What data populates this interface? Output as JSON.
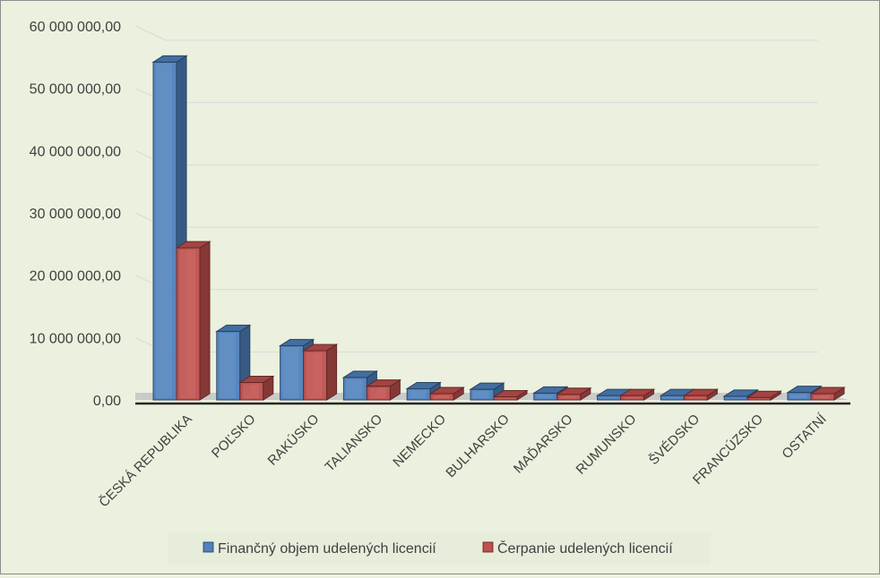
{
  "chart_data": {
    "type": "bar",
    "categories": [
      "ČESKÁ REPUBLIKA",
      "POĽSKO",
      "RAKÚSKO",
      "TALIANSKO",
      "NEMECKO",
      "BULHARSKO",
      "MAĎARSKO",
      "RUMUNSKO",
      "ŠVÉDSKO",
      "FRANCÚZSKO",
      "OSTATNÍ"
    ],
    "series": [
      {
        "name": "Finančný objem udelených licencií",
        "color": "#4f81bd",
        "values": [
          54200000,
          11000000,
          8700000,
          3600000,
          1800000,
          1700000,
          1100000,
          700000,
          700000,
          600000,
          1200000
        ]
      },
      {
        "name": "Čerpanie udelených licencií",
        "color": "#c0504d",
        "values": [
          24400000,
          2800000,
          7900000,
          2200000,
          1000000,
          500000,
          900000,
          700000,
          700000,
          400000,
          1000000
        ]
      }
    ],
    "y_ticks": [
      "0,00",
      "10 000 000,00",
      "20 000 000,00",
      "30 000 000,00",
      "40 000 000,00",
      "50 000 000,00",
      "60 000 000,00"
    ],
    "ylim": [
      0,
      60000000
    ],
    "grid": true,
    "legend": "bottom",
    "title": "",
    "xlabel": "",
    "ylabel": ""
  }
}
